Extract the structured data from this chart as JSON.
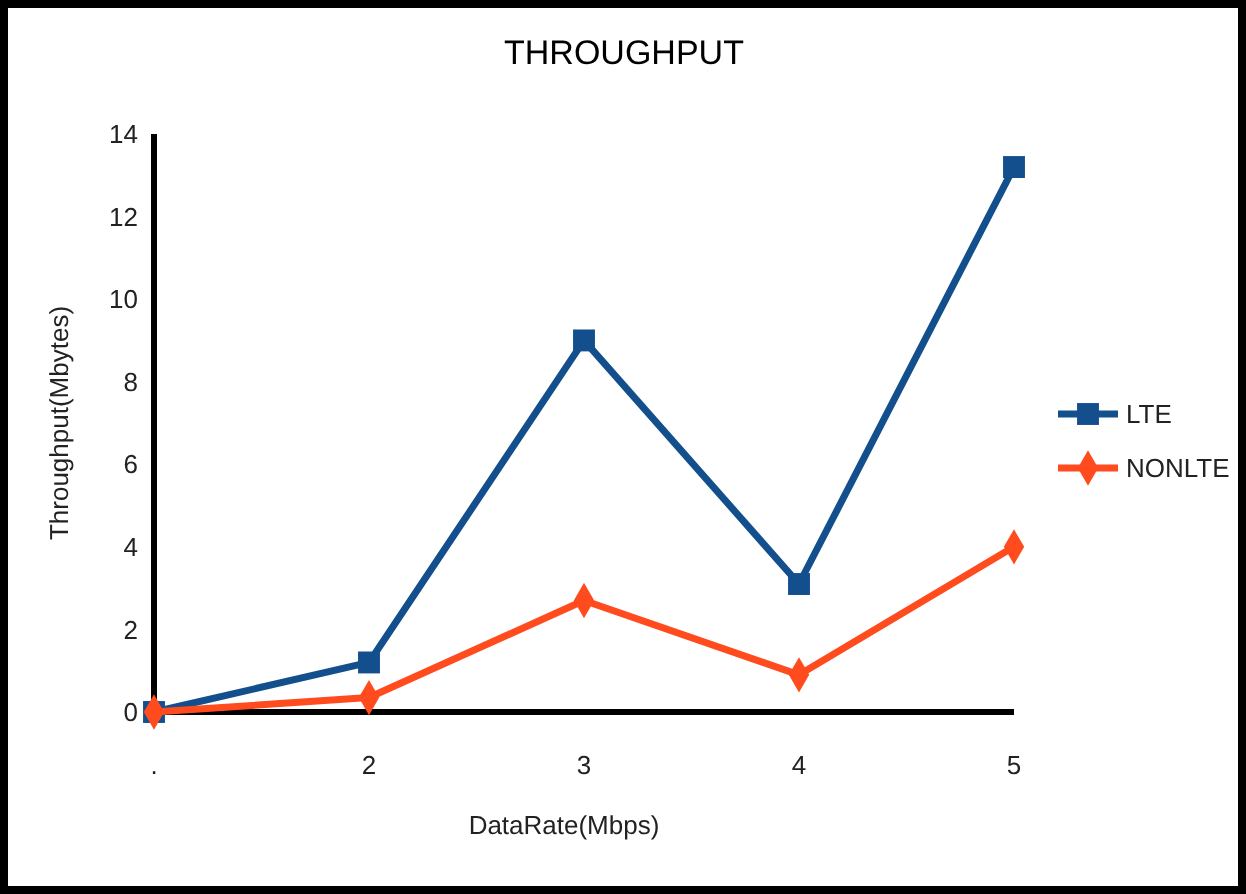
{
  "chart_data": {
    "type": "line",
    "title": "THROUGHPUT",
    "xlabel": "DataRate(Mbps)",
    "ylabel": "Throughput(Mbytes)",
    "categories": [
      ".",
      "2",
      "3",
      "4",
      "5"
    ],
    "series": [
      {
        "name": "LTE",
        "color": "#134f8c",
        "marker": "square",
        "values": [
          0,
          1.2,
          9,
          3.1,
          13.2
        ]
      },
      {
        "name": "NONLTE",
        "color": "#ff4b1e",
        "marker": "diamond",
        "values": [
          0,
          0.35,
          2.7,
          0.9,
          4
        ]
      }
    ],
    "ylim": [
      0,
      14
    ],
    "yticks": [
      0,
      2,
      4,
      6,
      8,
      10,
      12,
      14
    ],
    "legend": "right",
    "grid": false
  }
}
